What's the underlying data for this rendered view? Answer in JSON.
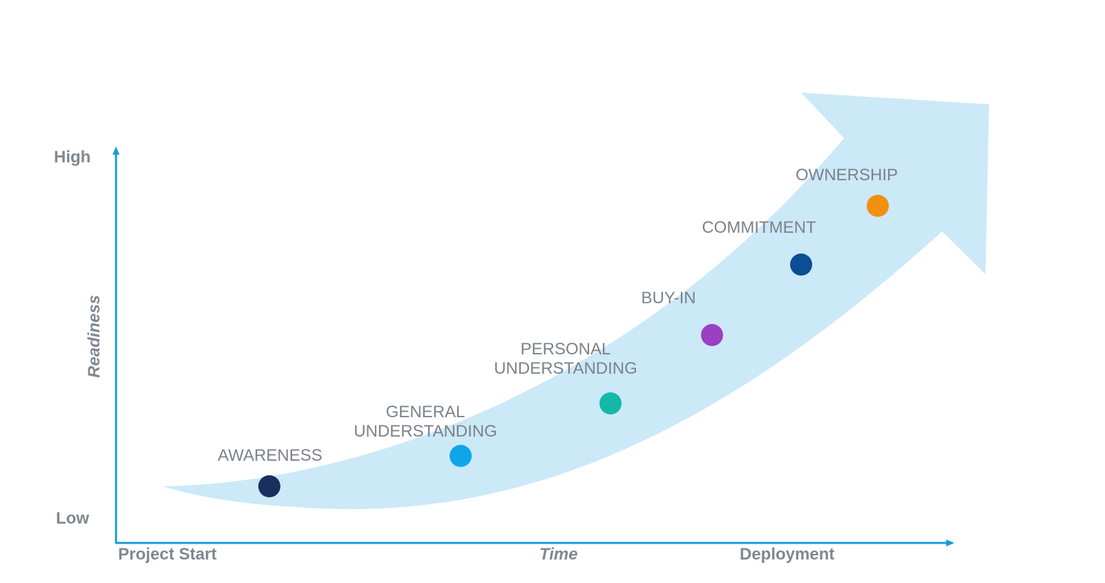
{
  "axes": {
    "y_high": "High",
    "y_low": "Low",
    "y_title": "Readiness",
    "x_start": "Project Start",
    "x_title": "Time",
    "x_end": "Deployment"
  },
  "colors": {
    "axis": "#1a9bd7",
    "arrow": "#cce9f7",
    "text": "#7f8891"
  },
  "stages": [
    {
      "lines": [
        "AWARENESS"
      ],
      "color": "#1b2f5e"
    },
    {
      "lines": [
        "GENERAL",
        "UNDERSTANDING"
      ],
      "color": "#0ea5e9"
    },
    {
      "lines": [
        "PERSONAL",
        "UNDERSTANDING"
      ],
      "color": "#14b8a6"
    },
    {
      "lines": [
        "BUY-IN"
      ],
      "color": "#9b3fc4"
    },
    {
      "lines": [
        "COMMITMENT"
      ],
      "color": "#0d4d94"
    },
    {
      "lines": [
        "OWNERSHIP"
      ],
      "color": "#f0900e"
    }
  ]
}
